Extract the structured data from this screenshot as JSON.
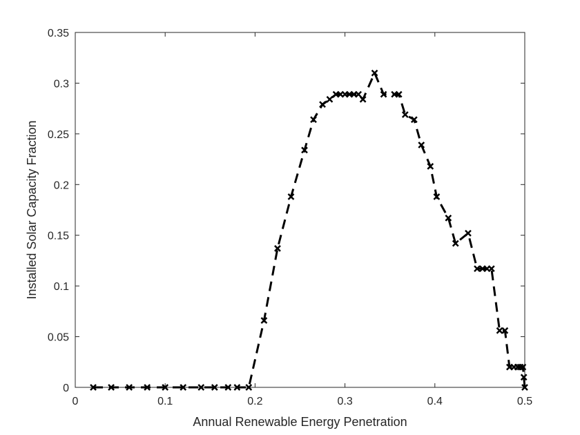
{
  "chart_data": {
    "type": "line",
    "title": "",
    "xlabel": "Annual Renewable Energy Penetration",
    "ylabel": "Installed Solar Capacity Fraction",
    "xlim": [
      0,
      0.5
    ],
    "ylim": [
      0,
      0.35
    ],
    "xticks": [
      0,
      0.1,
      0.2,
      0.3,
      0.4,
      0.5
    ],
    "xtick_labels": [
      "0",
      "0.1",
      "0.2",
      "0.3",
      "0.4",
      "0.5"
    ],
    "yticks": [
      0,
      0.05,
      0.1,
      0.15,
      0.2,
      0.25,
      0.3,
      0.35
    ],
    "ytick_labels": [
      "0",
      "0.05",
      "0.1",
      "0.15",
      "0.2",
      "0.25",
      "0.3",
      "0.35"
    ],
    "grid": false,
    "line_style": "dashed",
    "marker": "x",
    "line_color": "#000000",
    "series": [
      {
        "x": [
          0.02,
          0.04,
          0.06,
          0.08,
          0.1,
          0.12,
          0.14,
          0.155,
          0.17,
          0.18,
          0.193,
          0.21,
          0.225,
          0.24,
          0.255,
          0.265,
          0.275,
          0.283,
          0.29,
          0.295,
          0.3,
          0.305,
          0.31,
          0.315,
          0.32,
          0.333,
          0.343,
          0.355,
          0.36,
          0.367,
          0.377,
          0.385,
          0.395,
          0.402,
          0.415,
          0.423,
          0.437,
          0.447,
          0.453,
          0.458,
          0.463,
          0.472,
          0.478,
          0.483,
          0.488,
          0.492,
          0.495,
          0.498,
          0.499,
          0.5
        ],
        "y": [
          0,
          0,
          0,
          0,
          0,
          0,
          0,
          0,
          0,
          0,
          0,
          0.066,
          0.137,
          0.188,
          0.234,
          0.264,
          0.279,
          0.284,
          0.289,
          0.289,
          0.289,
          0.289,
          0.289,
          0.289,
          0.284,
          0.31,
          0.289,
          0.289,
          0.289,
          0.269,
          0.264,
          0.239,
          0.218,
          0.188,
          0.167,
          0.142,
          0.152,
          0.117,
          0.117,
          0.117,
          0.117,
          0.056,
          0.056,
          0.02,
          0.02,
          0.02,
          0.02,
          0.02,
          0.01,
          0
        ]
      }
    ]
  }
}
